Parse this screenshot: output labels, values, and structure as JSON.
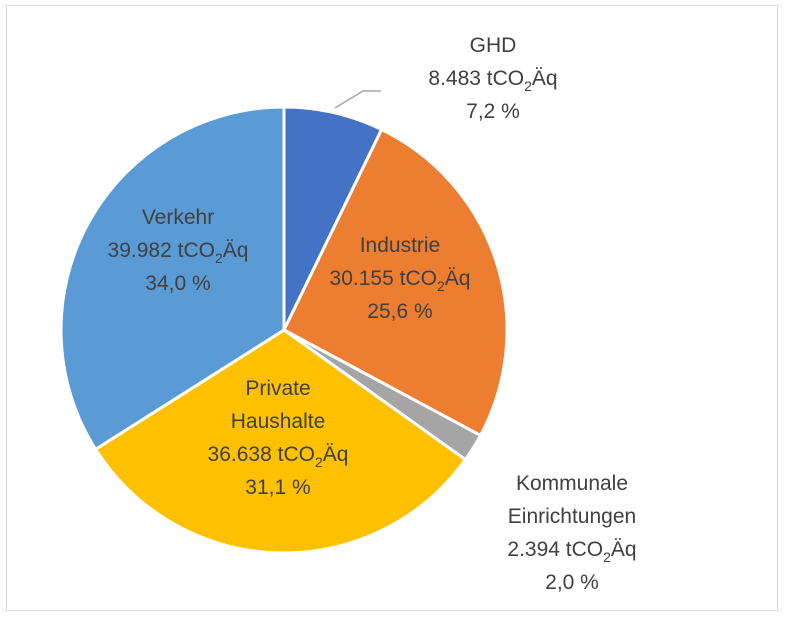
{
  "chart_data": {
    "type": "pie",
    "title": "",
    "slices": [
      {
        "name": "GHD",
        "value": 8483,
        "unit": "tCO",
        "unit_sub": "2",
        "unit_suffix": "Äq",
        "percent": "7,2 %",
        "value_label": "8.483",
        "color": "#4472c4",
        "label_color": "#404040"
      },
      {
        "name": "Industrie",
        "value": 30155,
        "unit": "tCO",
        "unit_sub": "2",
        "unit_suffix": "Äq",
        "percent": "25,6 %",
        "value_label": "30.155",
        "color": "#ed7d31",
        "label_color": "#404040"
      },
      {
        "name": "Kommunale Einrichtungen",
        "value": 2394,
        "unit": "tCO",
        "unit_sub": "2",
        "unit_suffix": "Äq",
        "percent": "2,0 %",
        "value_label": "2.394",
        "color": "#a5a5a5",
        "label_color": "#404040"
      },
      {
        "name": "Private Haushalte",
        "value": 36638,
        "unit": "tCO",
        "unit_sub": "2",
        "unit_suffix": "Äq",
        "percent": "31,1 %",
        "value_label": "36.638",
        "color": "#ffc000",
        "label_color": "#404040"
      },
      {
        "name": "Verkehr",
        "value": 39982,
        "unit": "tCO",
        "unit_sub": "2",
        "unit_suffix": "Äq",
        "percent": "34,0 %",
        "value_label": "39.982",
        "color": "#5b9bd5",
        "label_color": "#404040"
      }
    ]
  }
}
